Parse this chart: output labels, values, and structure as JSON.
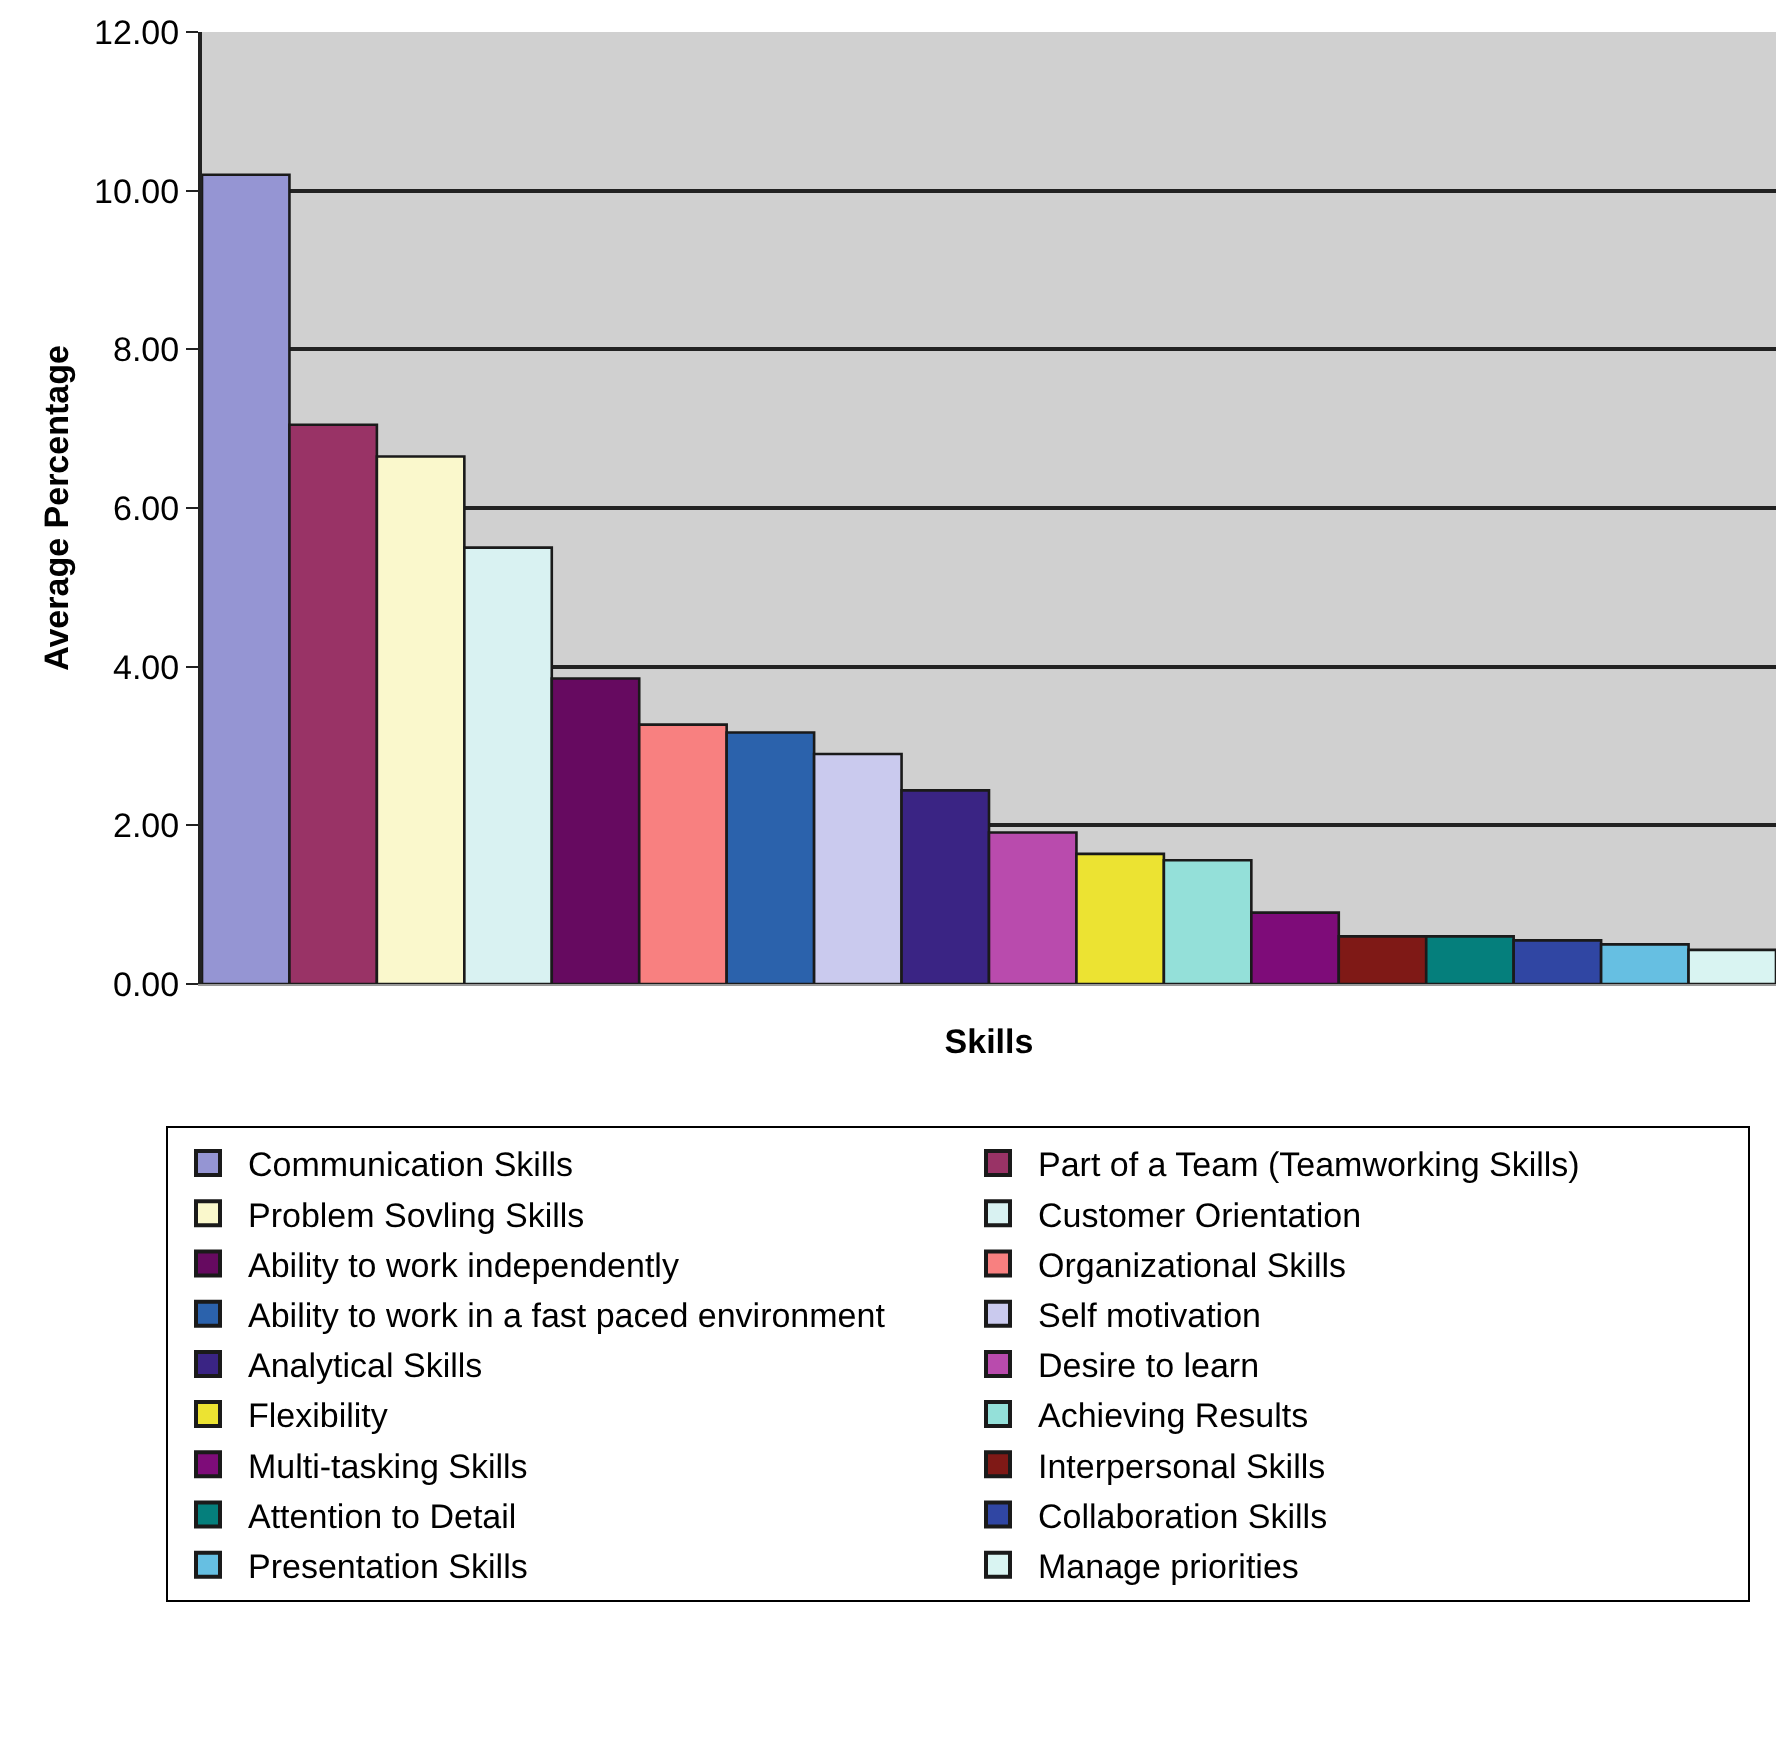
{
  "chart_data": {
    "type": "bar",
    "xlabel": "Skills",
    "ylabel": "Average Percentage",
    "categories": [
      null,
      null,
      null,
      null,
      null,
      null,
      null,
      null,
      null,
      null,
      null,
      null,
      null,
      null,
      null,
      null,
      null,
      null
    ],
    "ylim": [
      0,
      12
    ],
    "yticks": [
      {
        "value": 0,
        "label": "0.00"
      },
      {
        "value": 2,
        "label": "2.00"
      },
      {
        "value": 4,
        "label": "4.00"
      },
      {
        "value": 6,
        "label": "6.00"
      },
      {
        "value": 8,
        "label": "8.00"
      },
      {
        "value": 10,
        "label": "10.00"
      },
      {
        "value": 12,
        "label": "12.00"
      }
    ],
    "grid": "y",
    "legend": "bottom",
    "tick_labels": "y",
    "series": [
      {
        "name": "Communication Skills",
        "color": "#9595d3",
        "values": [
          10.2,
          null,
          null,
          null,
          null,
          null,
          null,
          null,
          null,
          null,
          null,
          null,
          null,
          null,
          null,
          null,
          null,
          null
        ]
      },
      {
        "name": "Part of a Team (Teamworking Skills)",
        "color": "#993366",
        "values": [
          null,
          7.05,
          null,
          null,
          null,
          null,
          null,
          null,
          null,
          null,
          null,
          null,
          null,
          null,
          null,
          null,
          null,
          null
        ]
      },
      {
        "name": "Problem Sovling Skills",
        "color": "#faf8cc",
        "values": [
          null,
          null,
          6.65,
          null,
          null,
          null,
          null,
          null,
          null,
          null,
          null,
          null,
          null,
          null,
          null,
          null,
          null,
          null
        ]
      },
      {
        "name": "Customer Orientation",
        "color": "#d9f2f2",
        "values": [
          null,
          null,
          null,
          5.5,
          null,
          null,
          null,
          null,
          null,
          null,
          null,
          null,
          null,
          null,
          null,
          null,
          null,
          null
        ]
      },
      {
        "name": "Ability to work independently",
        "color": "#660a60",
        "values": [
          null,
          null,
          null,
          null,
          3.85,
          null,
          null,
          null,
          null,
          null,
          null,
          null,
          null,
          null,
          null,
          null,
          null,
          null
        ]
      },
      {
        "name": "Organizational Skills",
        "color": "#f88080",
        "values": [
          null,
          null,
          null,
          null,
          null,
          3.27,
          null,
          null,
          null,
          null,
          null,
          null,
          null,
          null,
          null,
          null,
          null,
          null
        ]
      },
      {
        "name": "Ability to work in a fast paced environment",
        "color": "#2b62ac",
        "values": [
          null,
          null,
          null,
          null,
          null,
          null,
          3.17,
          null,
          null,
          null,
          null,
          null,
          null,
          null,
          null,
          null,
          null,
          null
        ]
      },
      {
        "name": "Self motivation",
        "color": "#cacaee",
        "values": [
          null,
          null,
          null,
          null,
          null,
          null,
          null,
          2.9,
          null,
          null,
          null,
          null,
          null,
          null,
          null,
          null,
          null,
          null
        ]
      },
      {
        "name": "Analytical Skills",
        "color": "#3a2484",
        "values": [
          null,
          null,
          null,
          null,
          null,
          null,
          null,
          null,
          2.44,
          null,
          null,
          null,
          null,
          null,
          null,
          null,
          null,
          null
        ]
      },
      {
        "name": "Desire to learn",
        "color": "#b94bad",
        "values": [
          null,
          null,
          null,
          null,
          null,
          null,
          null,
          null,
          null,
          1.91,
          null,
          null,
          null,
          null,
          null,
          null,
          null,
          null
        ]
      },
      {
        "name": "Flexibility",
        "color": "#ece332",
        "values": [
          null,
          null,
          null,
          null,
          null,
          null,
          null,
          null,
          null,
          null,
          1.64,
          null,
          null,
          null,
          null,
          null,
          null,
          null
        ]
      },
      {
        "name": "Achieving Results",
        "color": "#94e0d9",
        "values": [
          null,
          null,
          null,
          null,
          null,
          null,
          null,
          null,
          null,
          null,
          null,
          1.56,
          null,
          null,
          null,
          null,
          null,
          null
        ]
      },
      {
        "name": "Multi-tasking Skills",
        "color": "#7e0c79",
        "values": [
          null,
          null,
          null,
          null,
          null,
          null,
          null,
          null,
          null,
          null,
          null,
          null,
          0.9,
          null,
          null,
          null,
          null,
          null
        ]
      },
      {
        "name": "Interpersonal Skills",
        "color": "#7f1916",
        "values": [
          null,
          null,
          null,
          null,
          null,
          null,
          null,
          null,
          null,
          null,
          null,
          null,
          null,
          0.6,
          null,
          null,
          null,
          null
        ]
      },
      {
        "name": "Attention to Detail",
        "color": "#057f7c",
        "values": [
          null,
          null,
          null,
          null,
          null,
          null,
          null,
          null,
          null,
          null,
          null,
          null,
          null,
          null,
          0.6,
          null,
          null,
          null
        ]
      },
      {
        "name": "Collaboration Skills",
        "color": "#3046a3",
        "values": [
          null,
          null,
          null,
          null,
          null,
          null,
          null,
          null,
          null,
          null,
          null,
          null,
          null,
          null,
          null,
          0.55,
          null,
          null
        ]
      },
      {
        "name": "Presentation Skills",
        "color": "#66bfe2",
        "values": [
          null,
          null,
          null,
          null,
          null,
          null,
          null,
          null,
          null,
          null,
          null,
          null,
          null,
          null,
          null,
          null,
          0.5,
          null
        ]
      },
      {
        "name": "Manage priorities",
        "color": "#d9f4f2",
        "values": [
          null,
          null,
          null,
          null,
          null,
          null,
          null,
          null,
          null,
          null,
          null,
          null,
          null,
          null,
          null,
          null,
          null,
          0.43
        ]
      }
    ]
  }
}
